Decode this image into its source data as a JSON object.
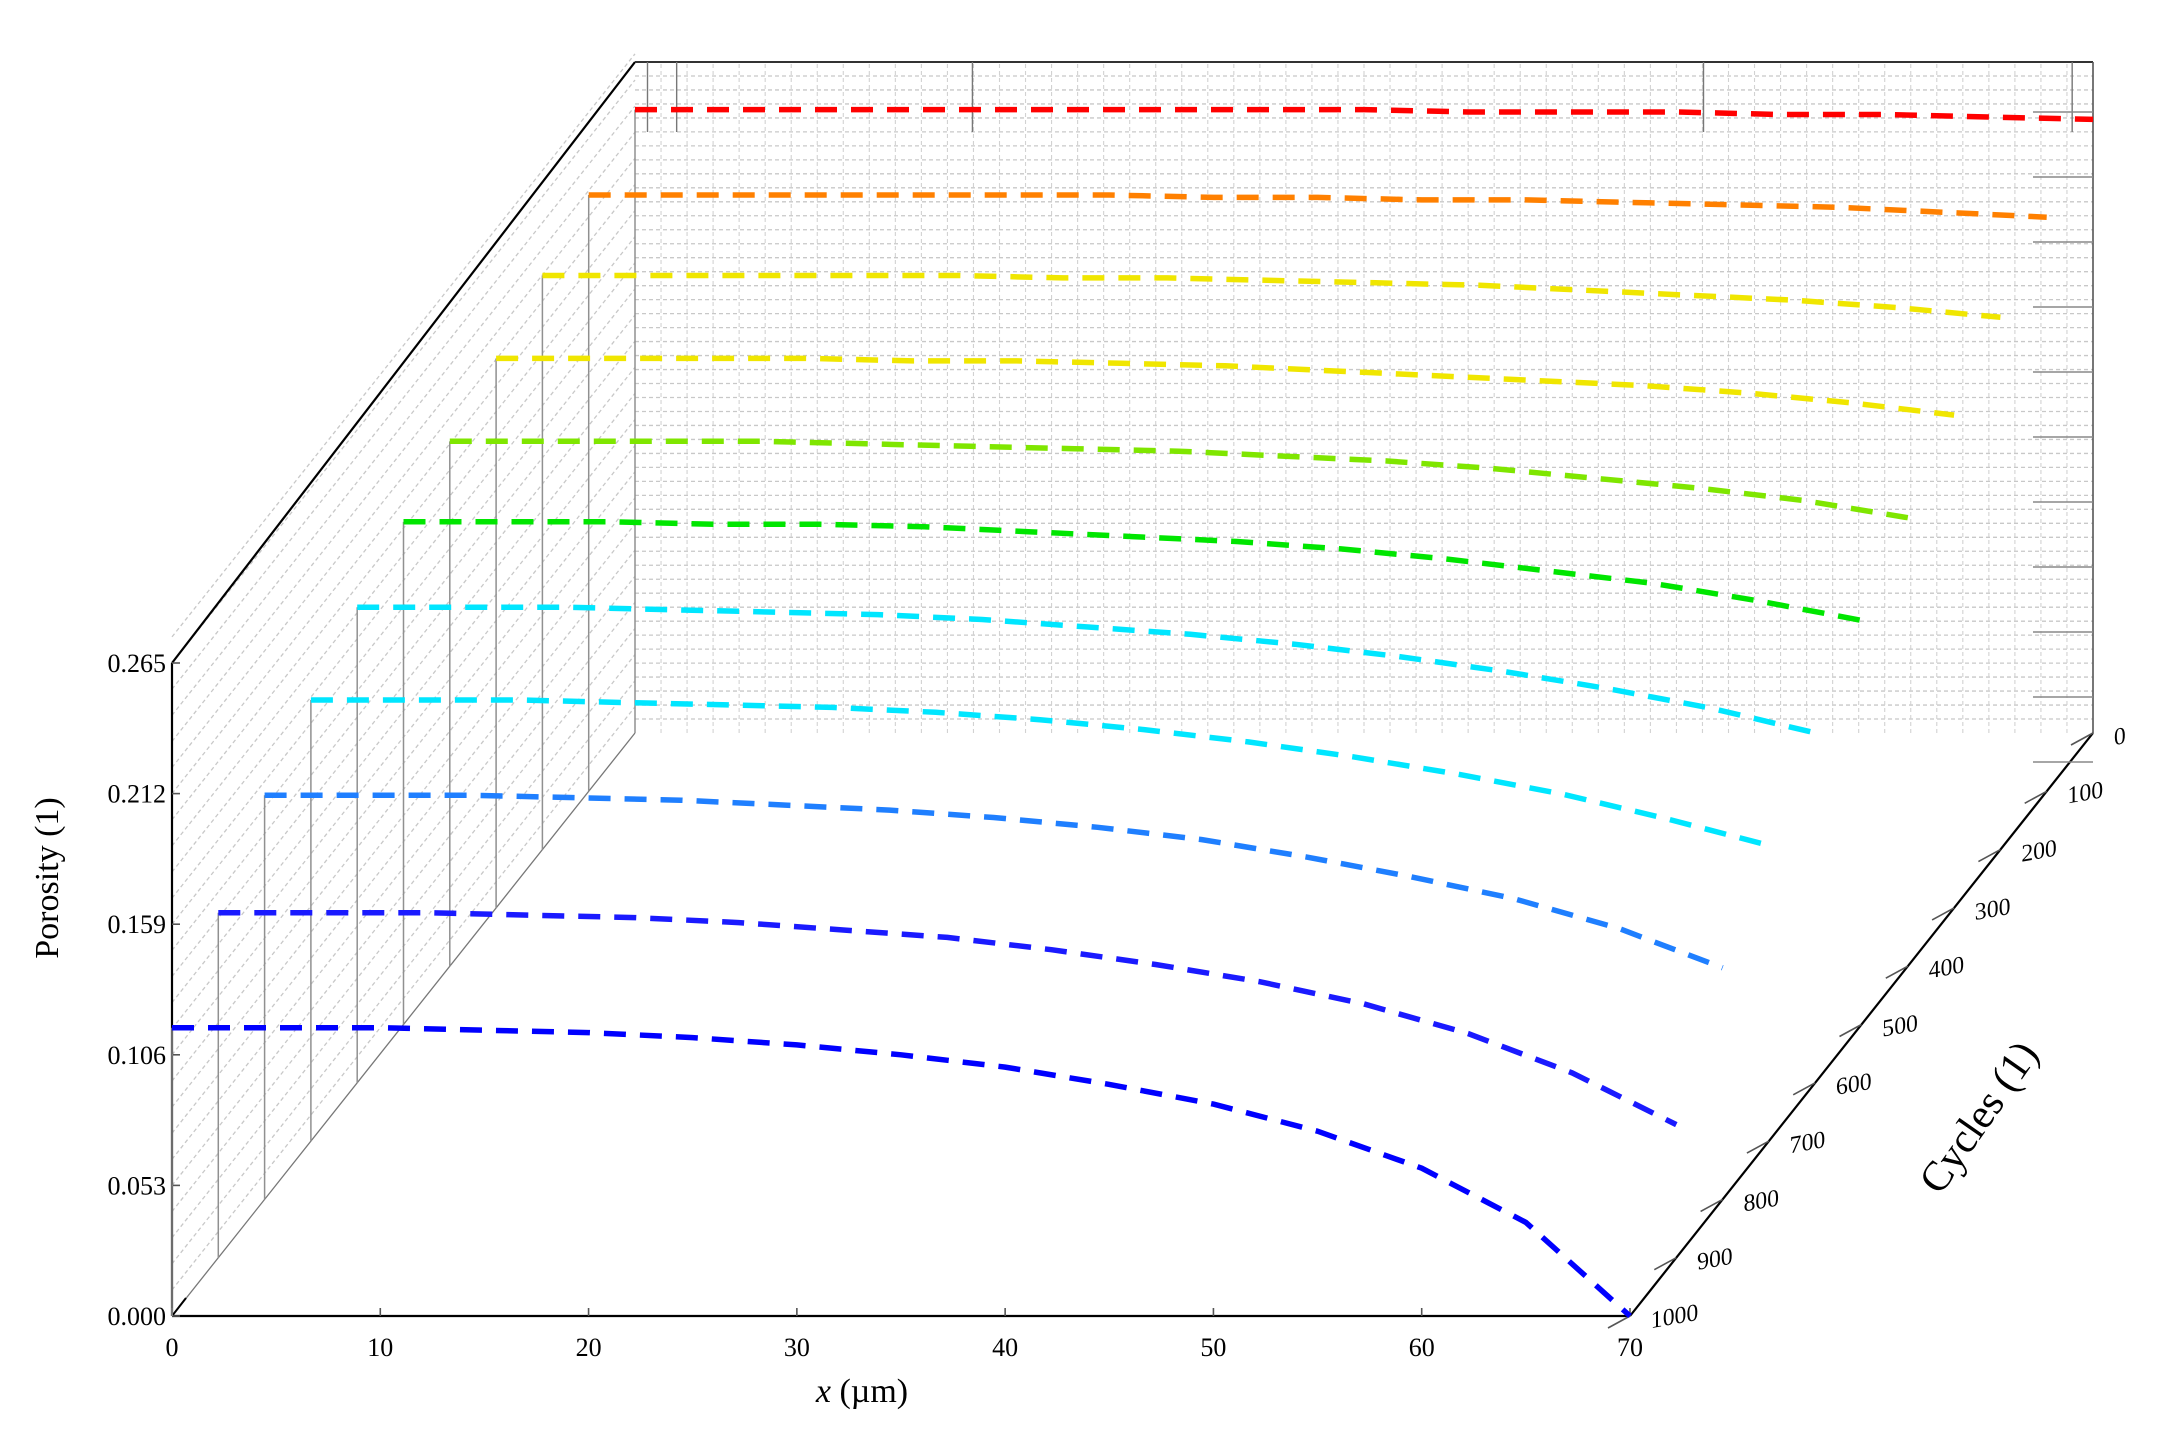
{
  "chart_data": {
    "type": "line",
    "projection": "3d",
    "title": "",
    "xlabel_prefix": "x",
    "xlabel_suffix": " (µm)",
    "ylabel": "Cycles (1)",
    "zlabel": "Porosity (1)",
    "xlim": [
      0,
      70
    ],
    "ylim": [
      0,
      1000
    ],
    "zlim": [
      0,
      0.265
    ],
    "x_ticks": [
      "0",
      "10",
      "20",
      "30",
      "40",
      "50",
      "60",
      "70"
    ],
    "y_ticks": [
      "0",
      "100",
      "200",
      "300",
      "400",
      "500",
      "600",
      "700",
      "800",
      "900",
      "1000"
    ],
    "z_ticks": [
      "0.265",
      "0.212",
      "0.159",
      "0.106",
      "0.053",
      "0.000"
    ],
    "grid": true,
    "legend": "none",
    "x": [
      0,
      5,
      10,
      15,
      20,
      25,
      30,
      35,
      40,
      45,
      50,
      55,
      60,
      65,
      70
    ],
    "series": [
      {
        "cycles": 1000,
        "color": "#0000ff",
        "values": [
          0.117,
          0.117,
          0.117,
          0.116,
          0.115,
          0.113,
          0.11,
          0.106,
          0.101,
          0.094,
          0.086,
          0.075,
          0.06,
          0.038,
          0.0
        ]
      },
      {
        "cycles": 900,
        "color": "#1a1aff",
        "values": [
          0.14,
          0.14,
          0.14,
          0.139,
          0.138,
          0.136,
          0.133,
          0.13,
          0.125,
          0.119,
          0.112,
          0.103,
          0.091,
          0.075,
          0.054
        ]
      },
      {
        "cycles": 800,
        "color": "#1f7fff",
        "values": [
          0.164,
          0.164,
          0.164,
          0.163,
          0.162,
          0.16,
          0.158,
          0.155,
          0.151,
          0.146,
          0.139,
          0.131,
          0.122,
          0.11,
          0.094
        ]
      },
      {
        "cycles": 700,
        "color": "#00e6ff",
        "values": [
          0.179,
          0.179,
          0.179,
          0.178,
          0.177,
          0.176,
          0.174,
          0.171,
          0.167,
          0.162,
          0.156,
          0.149,
          0.141,
          0.131,
          0.12
        ]
      },
      {
        "cycles": 600,
        "color": "#00e6ff",
        "values": [
          0.193,
          0.193,
          0.193,
          0.192,
          0.191,
          0.19,
          0.188,
          0.185,
          0.182,
          0.178,
          0.173,
          0.167,
          0.16,
          0.152,
          0.142
        ]
      },
      {
        "cycles": 500,
        "color": "#00e600",
        "values": [
          0.204,
          0.204,
          0.204,
          0.203,
          0.203,
          0.202,
          0.2,
          0.198,
          0.196,
          0.193,
          0.189,
          0.184,
          0.179,
          0.172,
          0.164
        ]
      },
      {
        "cycles": 400,
        "color": "#7fe600",
        "values": [
          0.213,
          0.213,
          0.213,
          0.213,
          0.212,
          0.211,
          0.21,
          0.209,
          0.207,
          0.205,
          0.202,
          0.198,
          0.194,
          0.189,
          0.182
        ]
      },
      {
        "cycles": 300,
        "color": "#f0e600",
        "values": [
          0.223,
          0.223,
          0.223,
          0.223,
          0.222,
          0.222,
          0.221,
          0.22,
          0.218,
          0.216,
          0.214,
          0.212,
          0.209,
          0.205,
          0.2
        ]
      },
      {
        "cycles": 200,
        "color": "#f0e600",
        "values": [
          0.233,
          0.233,
          0.233,
          0.233,
          0.233,
          0.232,
          0.232,
          0.231,
          0.23,
          0.229,
          0.227,
          0.225,
          0.223,
          0.22,
          0.216
        ]
      },
      {
        "cycles": 100,
        "color": "#ff8000",
        "values": [
          0.242,
          0.242,
          0.242,
          0.242,
          0.242,
          0.242,
          0.241,
          0.241,
          0.24,
          0.24,
          0.239,
          0.238,
          0.237,
          0.235,
          0.233
        ]
      },
      {
        "cycles": 0,
        "color": "#ff0000",
        "values": [
          0.253,
          0.253,
          0.253,
          0.253,
          0.253,
          0.253,
          0.253,
          0.253,
          0.252,
          0.252,
          0.252,
          0.251,
          0.251,
          0.25,
          0.249
        ]
      }
    ]
  }
}
